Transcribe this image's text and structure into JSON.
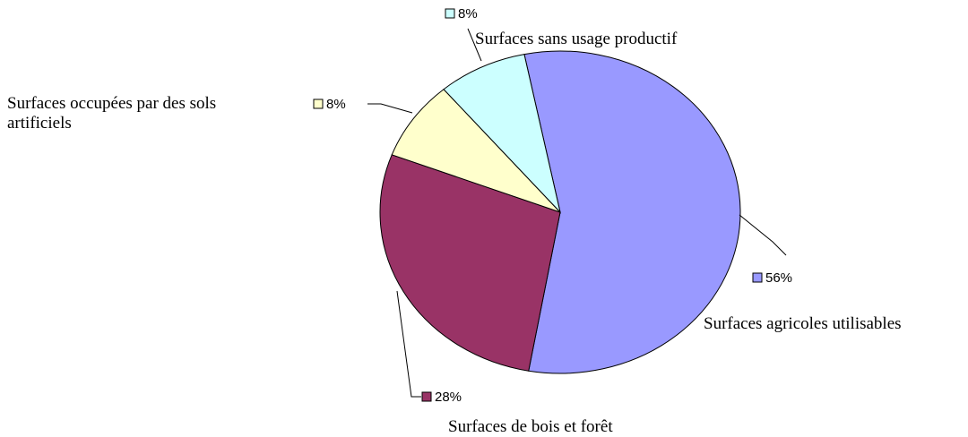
{
  "chart_data": {
    "type": "pie",
    "categories": [
      "Surfaces agricoles utilisables",
      "Surfaces de bois et forêt",
      "Surfaces occupées par des sols artificiels",
      "Surfaces sans usage productif"
    ],
    "values": [
      56,
      28,
      8,
      8
    ],
    "value_labels": [
      "56%",
      "28%",
      "8%",
      "8%"
    ],
    "colors": [
      "#9999ff",
      "#993366",
      "#ffffcc",
      "#ccffff"
    ]
  }
}
